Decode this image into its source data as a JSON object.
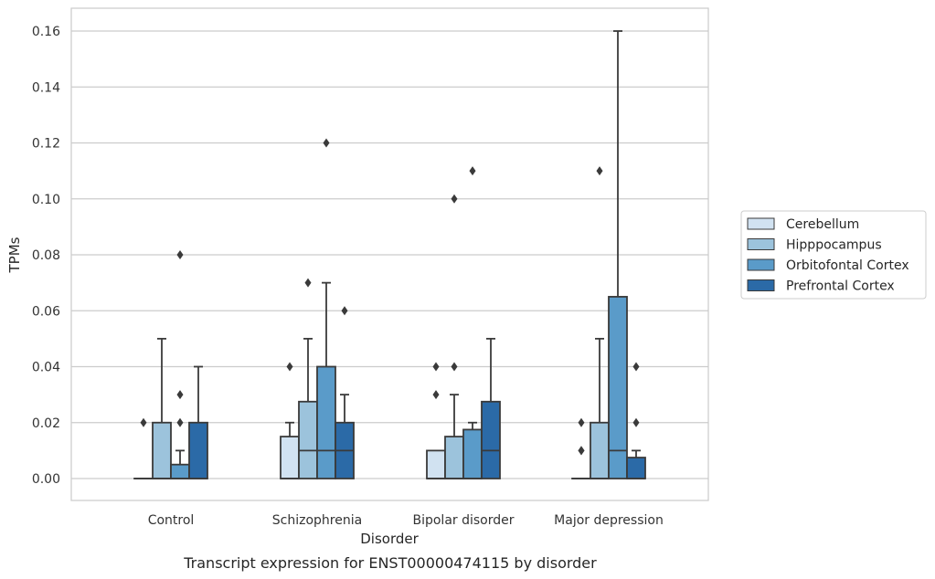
{
  "chart_data": {
    "type": "box",
    "caption": "Transcript expression for ENST00000474115 by disorder",
    "xlabel": "Disorder",
    "ylabel": "TPMs",
    "ylim": [
      -0.008,
      0.168
    ],
    "yticks": [
      0.0,
      0.02,
      0.04,
      0.06,
      0.08,
      0.1,
      0.12,
      0.14,
      0.16
    ],
    "ytick_labels": [
      "0.00",
      "0.02",
      "0.04",
      "0.06",
      "0.08",
      "0.10",
      "0.12",
      "0.14",
      "0.16"
    ],
    "grid": true,
    "legend_position": "right",
    "categories": [
      "Control",
      "Schizophrenia",
      "Bipolar disorder",
      "Major depression"
    ],
    "series": [
      {
        "name": "Cerebellum",
        "color": "#d1e2f1",
        "boxes": [
          {
            "q1": 0.0,
            "median": 0.0,
            "q3": 0.0,
            "whisker_low": 0.0,
            "whisker_high": 0.0,
            "outliers": [
              0.02
            ]
          },
          {
            "q1": 0.0,
            "median": 0.0,
            "q3": 0.015,
            "whisker_low": 0.0,
            "whisker_high": 0.02,
            "outliers": [
              0.04
            ]
          },
          {
            "q1": 0.0,
            "median": 0.0,
            "q3": 0.01,
            "whisker_low": 0.0,
            "whisker_high": 0.01,
            "outliers": [
              0.03,
              0.04
            ]
          },
          {
            "q1": 0.0,
            "median": 0.0,
            "q3": 0.0,
            "whisker_low": 0.0,
            "whisker_high": 0.0,
            "outliers": [
              0.01,
              0.01,
              0.02
            ]
          }
        ]
      },
      {
        "name": "Hipppocampus",
        "color": "#9cc3dc",
        "boxes": [
          {
            "q1": 0.0,
            "median": 0.0,
            "q3": 0.02,
            "whisker_low": 0.0,
            "whisker_high": 0.05,
            "outliers": []
          },
          {
            "q1": 0.0,
            "median": 0.01,
            "q3": 0.0275,
            "whisker_low": 0.0,
            "whisker_high": 0.05,
            "outliers": [
              0.07
            ]
          },
          {
            "q1": 0.0,
            "median": 0.0,
            "q3": 0.015,
            "whisker_low": 0.0,
            "whisker_high": 0.03,
            "outliers": [
              0.04,
              0.1
            ]
          },
          {
            "q1": 0.0,
            "median": 0.0,
            "q3": 0.02,
            "whisker_low": 0.0,
            "whisker_high": 0.05,
            "outliers": [
              0.11
            ]
          }
        ]
      },
      {
        "name": "Orbitofontal Cortex",
        "color": "#5a9bc9",
        "boxes": [
          {
            "q1": 0.0,
            "median": 0.0,
            "q3": 0.005,
            "whisker_low": 0.0,
            "whisker_high": 0.01,
            "outliers": [
              0.02,
              0.03,
              0.08
            ]
          },
          {
            "q1": 0.0,
            "median": 0.01,
            "q3": 0.04,
            "whisker_low": 0.0,
            "whisker_high": 0.07,
            "outliers": [
              0.12
            ]
          },
          {
            "q1": 0.0,
            "median": 0.0,
            "q3": 0.0175,
            "whisker_low": 0.0,
            "whisker_high": 0.02,
            "outliers": [
              0.11
            ]
          },
          {
            "q1": 0.0,
            "median": 0.01,
            "q3": 0.065,
            "whisker_low": 0.0,
            "whisker_high": 0.16,
            "outliers": []
          }
        ]
      },
      {
        "name": "Prefrontal Cortex",
        "color": "#2b6aa7",
        "boxes": [
          {
            "q1": 0.0,
            "median": 0.0,
            "q3": 0.02,
            "whisker_low": 0.0,
            "whisker_high": 0.04,
            "outliers": []
          },
          {
            "q1": 0.0,
            "median": 0.01,
            "q3": 0.02,
            "whisker_low": 0.0,
            "whisker_high": 0.03,
            "outliers": [
              0.06
            ]
          },
          {
            "q1": 0.0,
            "median": 0.01,
            "q3": 0.0275,
            "whisker_low": 0.0,
            "whisker_high": 0.05,
            "outliers": []
          },
          {
            "q1": 0.0,
            "median": 0.0,
            "q3": 0.0075,
            "whisker_low": 0.0,
            "whisker_high": 0.01,
            "outliers": [
              0.02,
              0.04
            ]
          }
        ]
      }
    ]
  }
}
